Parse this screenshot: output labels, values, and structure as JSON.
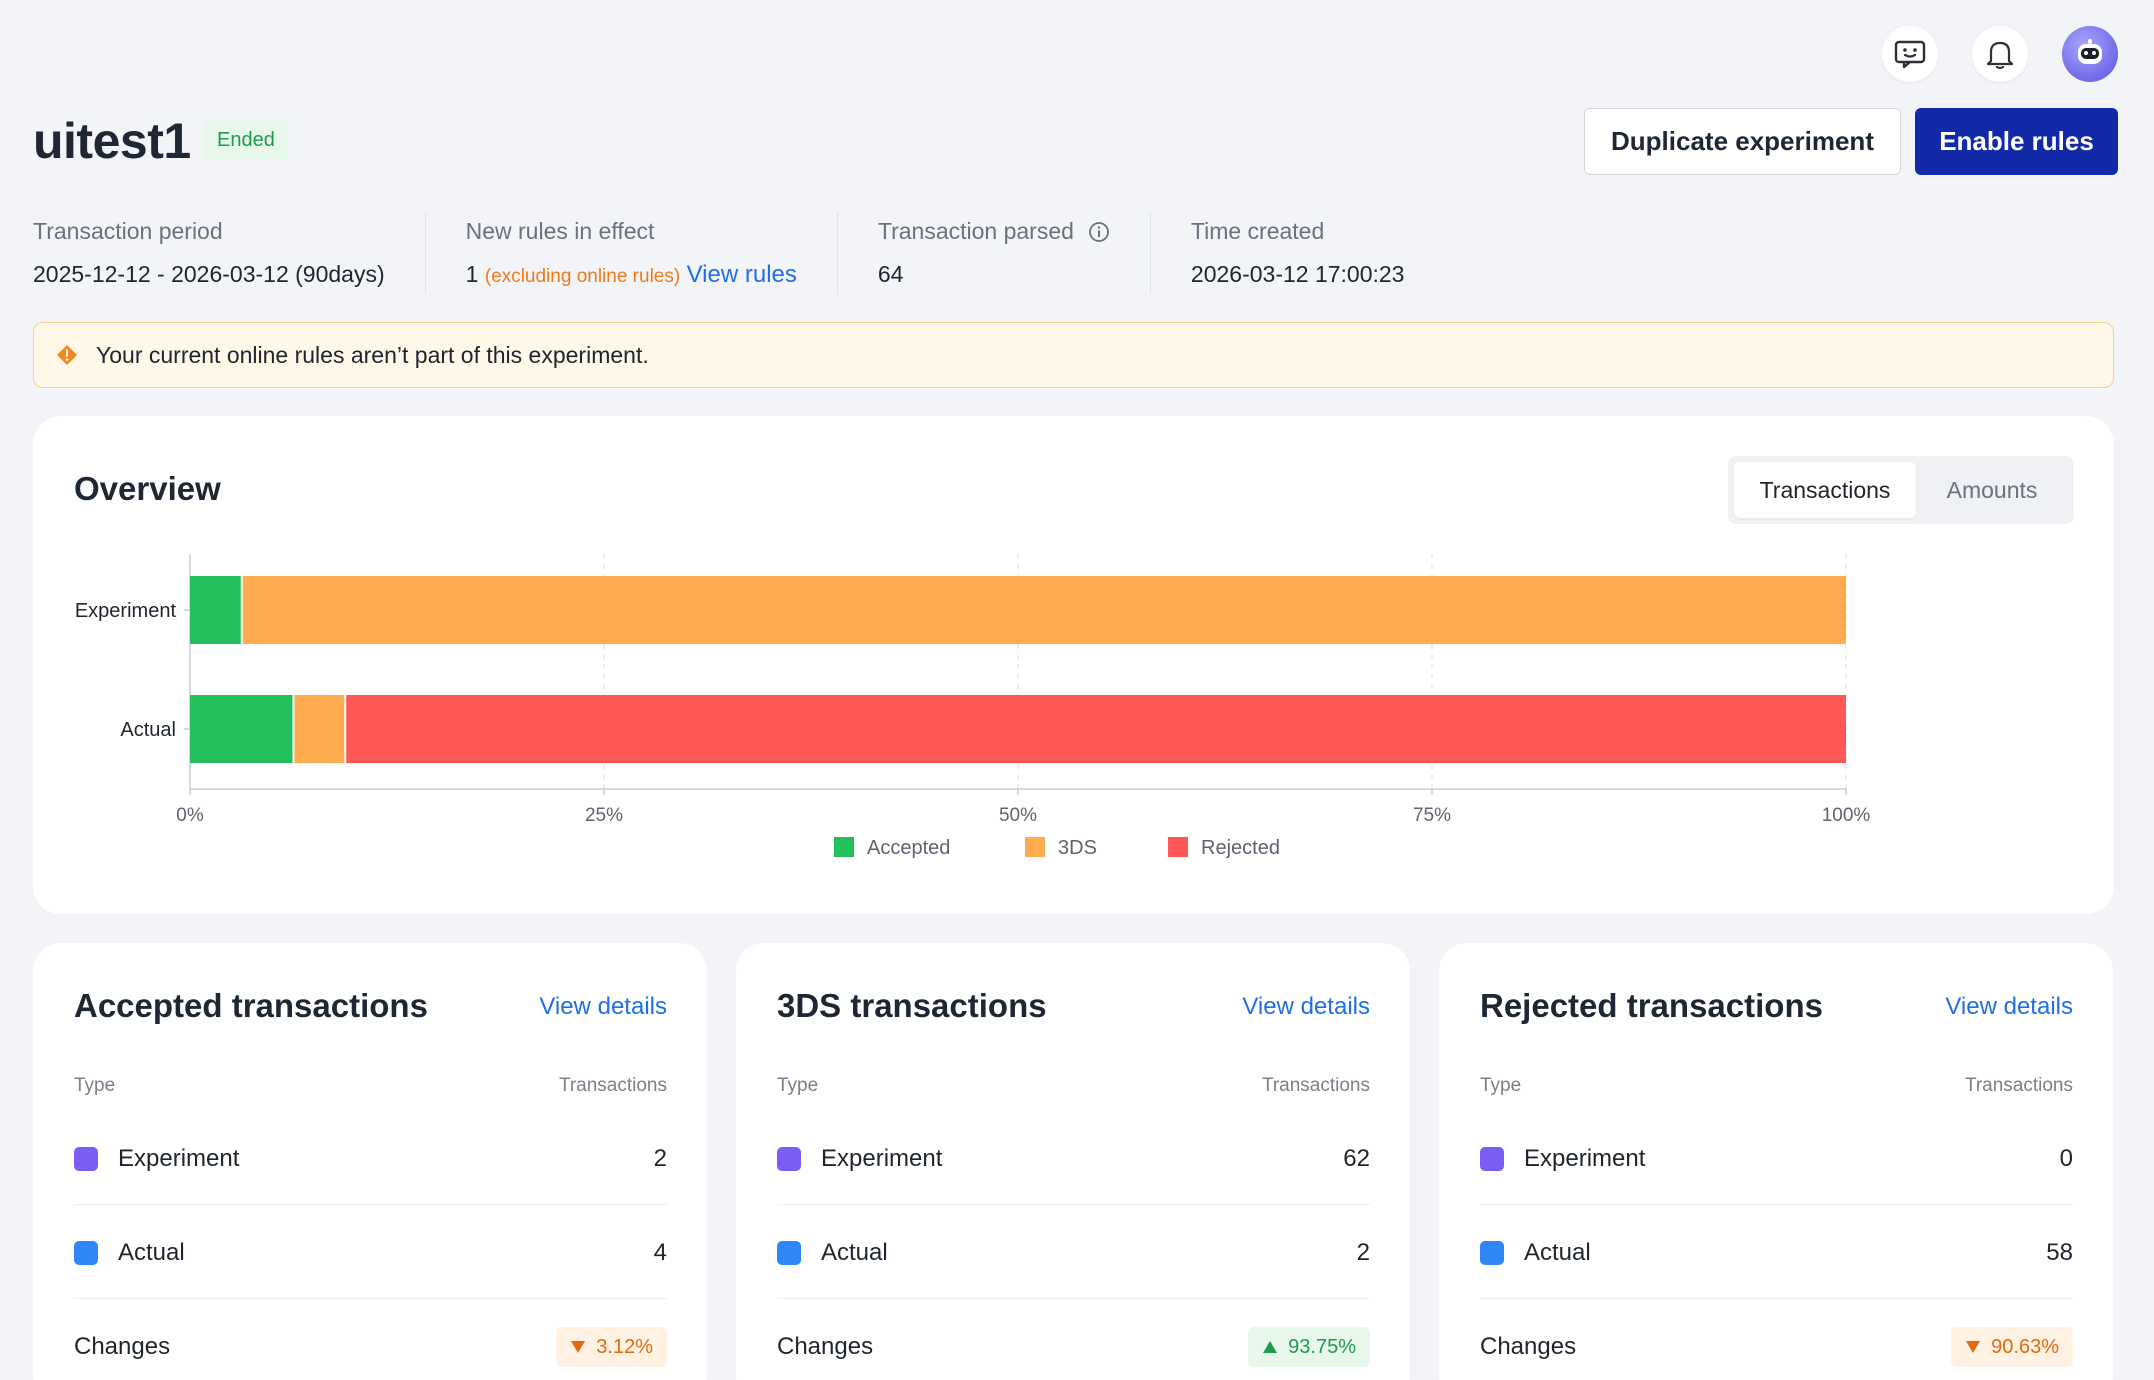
{
  "header": {
    "title": "uitest1",
    "status": "Ended",
    "duplicate_label": "Duplicate experiment",
    "enable_label": "Enable rules"
  },
  "meta": {
    "period_label": "Transaction period",
    "period_value": "2025-12-12 - 2026-03-12 (90days)",
    "rules_label": "New rules in effect",
    "rules_value": "1",
    "rules_sub": "(excluding online rules)",
    "rules_link": "View rules",
    "parsed_label": "Transaction parsed",
    "parsed_value": "64",
    "created_label": "Time created",
    "created_value": "2026-03-12 17:00:23"
  },
  "warning": {
    "text": "Your current online rules aren’t part of this experiment."
  },
  "overview": {
    "title": "Overview",
    "toggle": [
      "Transactions",
      "Amounts"
    ],
    "active_toggle": "Transactions"
  },
  "chart_data": {
    "type": "bar",
    "orientation": "horizontal",
    "stacked": true,
    "categories": [
      "Experiment",
      "Actual"
    ],
    "series": [
      {
        "name": "Accepted",
        "color": "#22c05a",
        "values": [
          3.125,
          6.25
        ]
      },
      {
        "name": "3DS",
        "color": "#ffab4f",
        "values": [
          96.875,
          3.125
        ]
      },
      {
        "name": "Rejected",
        "color": "#ff5656",
        "values": [
          0,
          90.625
        ]
      }
    ],
    "xlim": [
      0,
      100
    ],
    "x_ticks": [
      "0%",
      "25%",
      "50%",
      "75%",
      "100%"
    ],
    "x_tick_values": [
      0,
      25,
      50,
      75,
      100
    ],
    "grid": true,
    "legend": "bottom-center"
  },
  "stats": {
    "type_label": "Type",
    "tx_label": "Transactions",
    "experiment_label": "Experiment",
    "actual_label": "Actual",
    "changes_label": "Changes",
    "view_details": "View details",
    "experiment_color": "#7b5cf5",
    "actual_color": "#2f86f6",
    "cards": [
      {
        "title": "Accepted transactions",
        "experiment": "2",
        "actual": "4",
        "change": "3.12%",
        "direction": "down"
      },
      {
        "title": "3DS transactions",
        "experiment": "62",
        "actual": "2",
        "change": "93.75%",
        "direction": "up"
      },
      {
        "title": "Rejected transactions",
        "experiment": "0",
        "actual": "58",
        "change": "90.63%",
        "direction": "down"
      }
    ]
  },
  "icons": {
    "chat": "chat-bubble-icon",
    "bell": "bell-icon",
    "avatar": "robot-avatar-icon",
    "info": "info-icon",
    "warning": "warning-diamond-icon"
  }
}
